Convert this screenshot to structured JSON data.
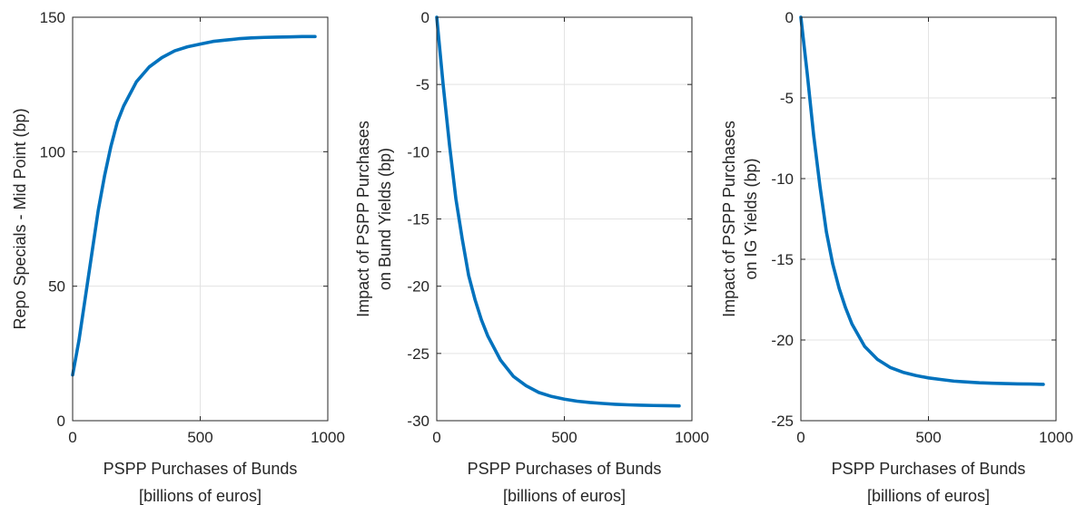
{
  "colors": {
    "series": "#0072BD",
    "axis": "#262626",
    "grid": "#e3e3e3",
    "background": "#ffffff"
  },
  "chart_data": [
    {
      "type": "line",
      "title": "",
      "xlabel": [
        "PSPP Purchases of Bunds",
        "[billions of euros]"
      ],
      "ylabel": [
        "Repo Specials - Mid Point (bp)"
      ],
      "xlim": [
        0,
        1000
      ],
      "ylim": [
        0,
        150
      ],
      "xticks": [
        0,
        500,
        1000
      ],
      "yticks": [
        0,
        50,
        100,
        150
      ],
      "grid": true,
      "series": [
        {
          "x": [
            0,
            25,
            50,
            75,
            100,
            125,
            150,
            175,
            200,
            250,
            300,
            350,
            400,
            450,
            500,
            550,
            600,
            650,
            700,
            750,
            800,
            850,
            900,
            950
          ],
          "y": [
            17,
            30,
            46,
            62,
            78,
            91,
            102,
            111,
            117,
            126,
            131.5,
            135,
            137.5,
            139,
            140,
            141,
            141.5,
            142,
            142.3,
            142.5,
            142.6,
            142.7,
            142.8,
            142.8
          ]
        }
      ]
    },
    {
      "type": "line",
      "title": "",
      "xlabel": [
        "PSPP Purchases of Bunds",
        "[billions of euros]"
      ],
      "ylabel": [
        "Impact of PSPP Purchases",
        "on Bund Yields (bp)"
      ],
      "xlim": [
        0,
        1000
      ],
      "ylim": [
        -30,
        0
      ],
      "xticks": [
        0,
        500,
        1000
      ],
      "yticks": [
        -30,
        -25,
        -20,
        -15,
        -10,
        -5,
        0
      ],
      "grid": true,
      "series": [
        {
          "x": [
            0,
            25,
            50,
            75,
            100,
            125,
            150,
            175,
            200,
            250,
            300,
            350,
            400,
            450,
            500,
            550,
            600,
            650,
            700,
            750,
            800,
            850,
            900,
            950
          ],
          "y": [
            0,
            -5,
            -9.5,
            -13.5,
            -16.5,
            -19.2,
            -21,
            -22.5,
            -23.7,
            -25.5,
            -26.7,
            -27.4,
            -27.9,
            -28.2,
            -28.4,
            -28.55,
            -28.65,
            -28.72,
            -28.78,
            -28.82,
            -28.85,
            -28.87,
            -28.88,
            -28.9
          ]
        }
      ]
    },
    {
      "type": "line",
      "title": "",
      "xlabel": [
        "PSPP Purchases of Bunds",
        "[billions of euros]"
      ],
      "ylabel": [
        "Impact of PSPP Purchases",
        "on IG Yields (bp)"
      ],
      "xlim": [
        0,
        1000
      ],
      "ylim": [
        -25,
        0
      ],
      "xticks": [
        0,
        500,
        1000
      ],
      "yticks": [
        -25,
        -20,
        -15,
        -10,
        -5,
        0
      ],
      "grid": true,
      "series": [
        {
          "x": [
            0,
            25,
            50,
            75,
            100,
            125,
            150,
            175,
            200,
            250,
            300,
            350,
            400,
            450,
            500,
            550,
            600,
            650,
            700,
            750,
            800,
            850,
            900,
            950
          ],
          "y": [
            0,
            -3.5,
            -7.3,
            -10.5,
            -13.3,
            -15.3,
            -16.8,
            -18,
            -19,
            -20.4,
            -21.2,
            -21.7,
            -22,
            -22.2,
            -22.35,
            -22.45,
            -22.55,
            -22.6,
            -22.65,
            -22.68,
            -22.7,
            -22.72,
            -22.73,
            -22.75
          ]
        }
      ]
    }
  ]
}
